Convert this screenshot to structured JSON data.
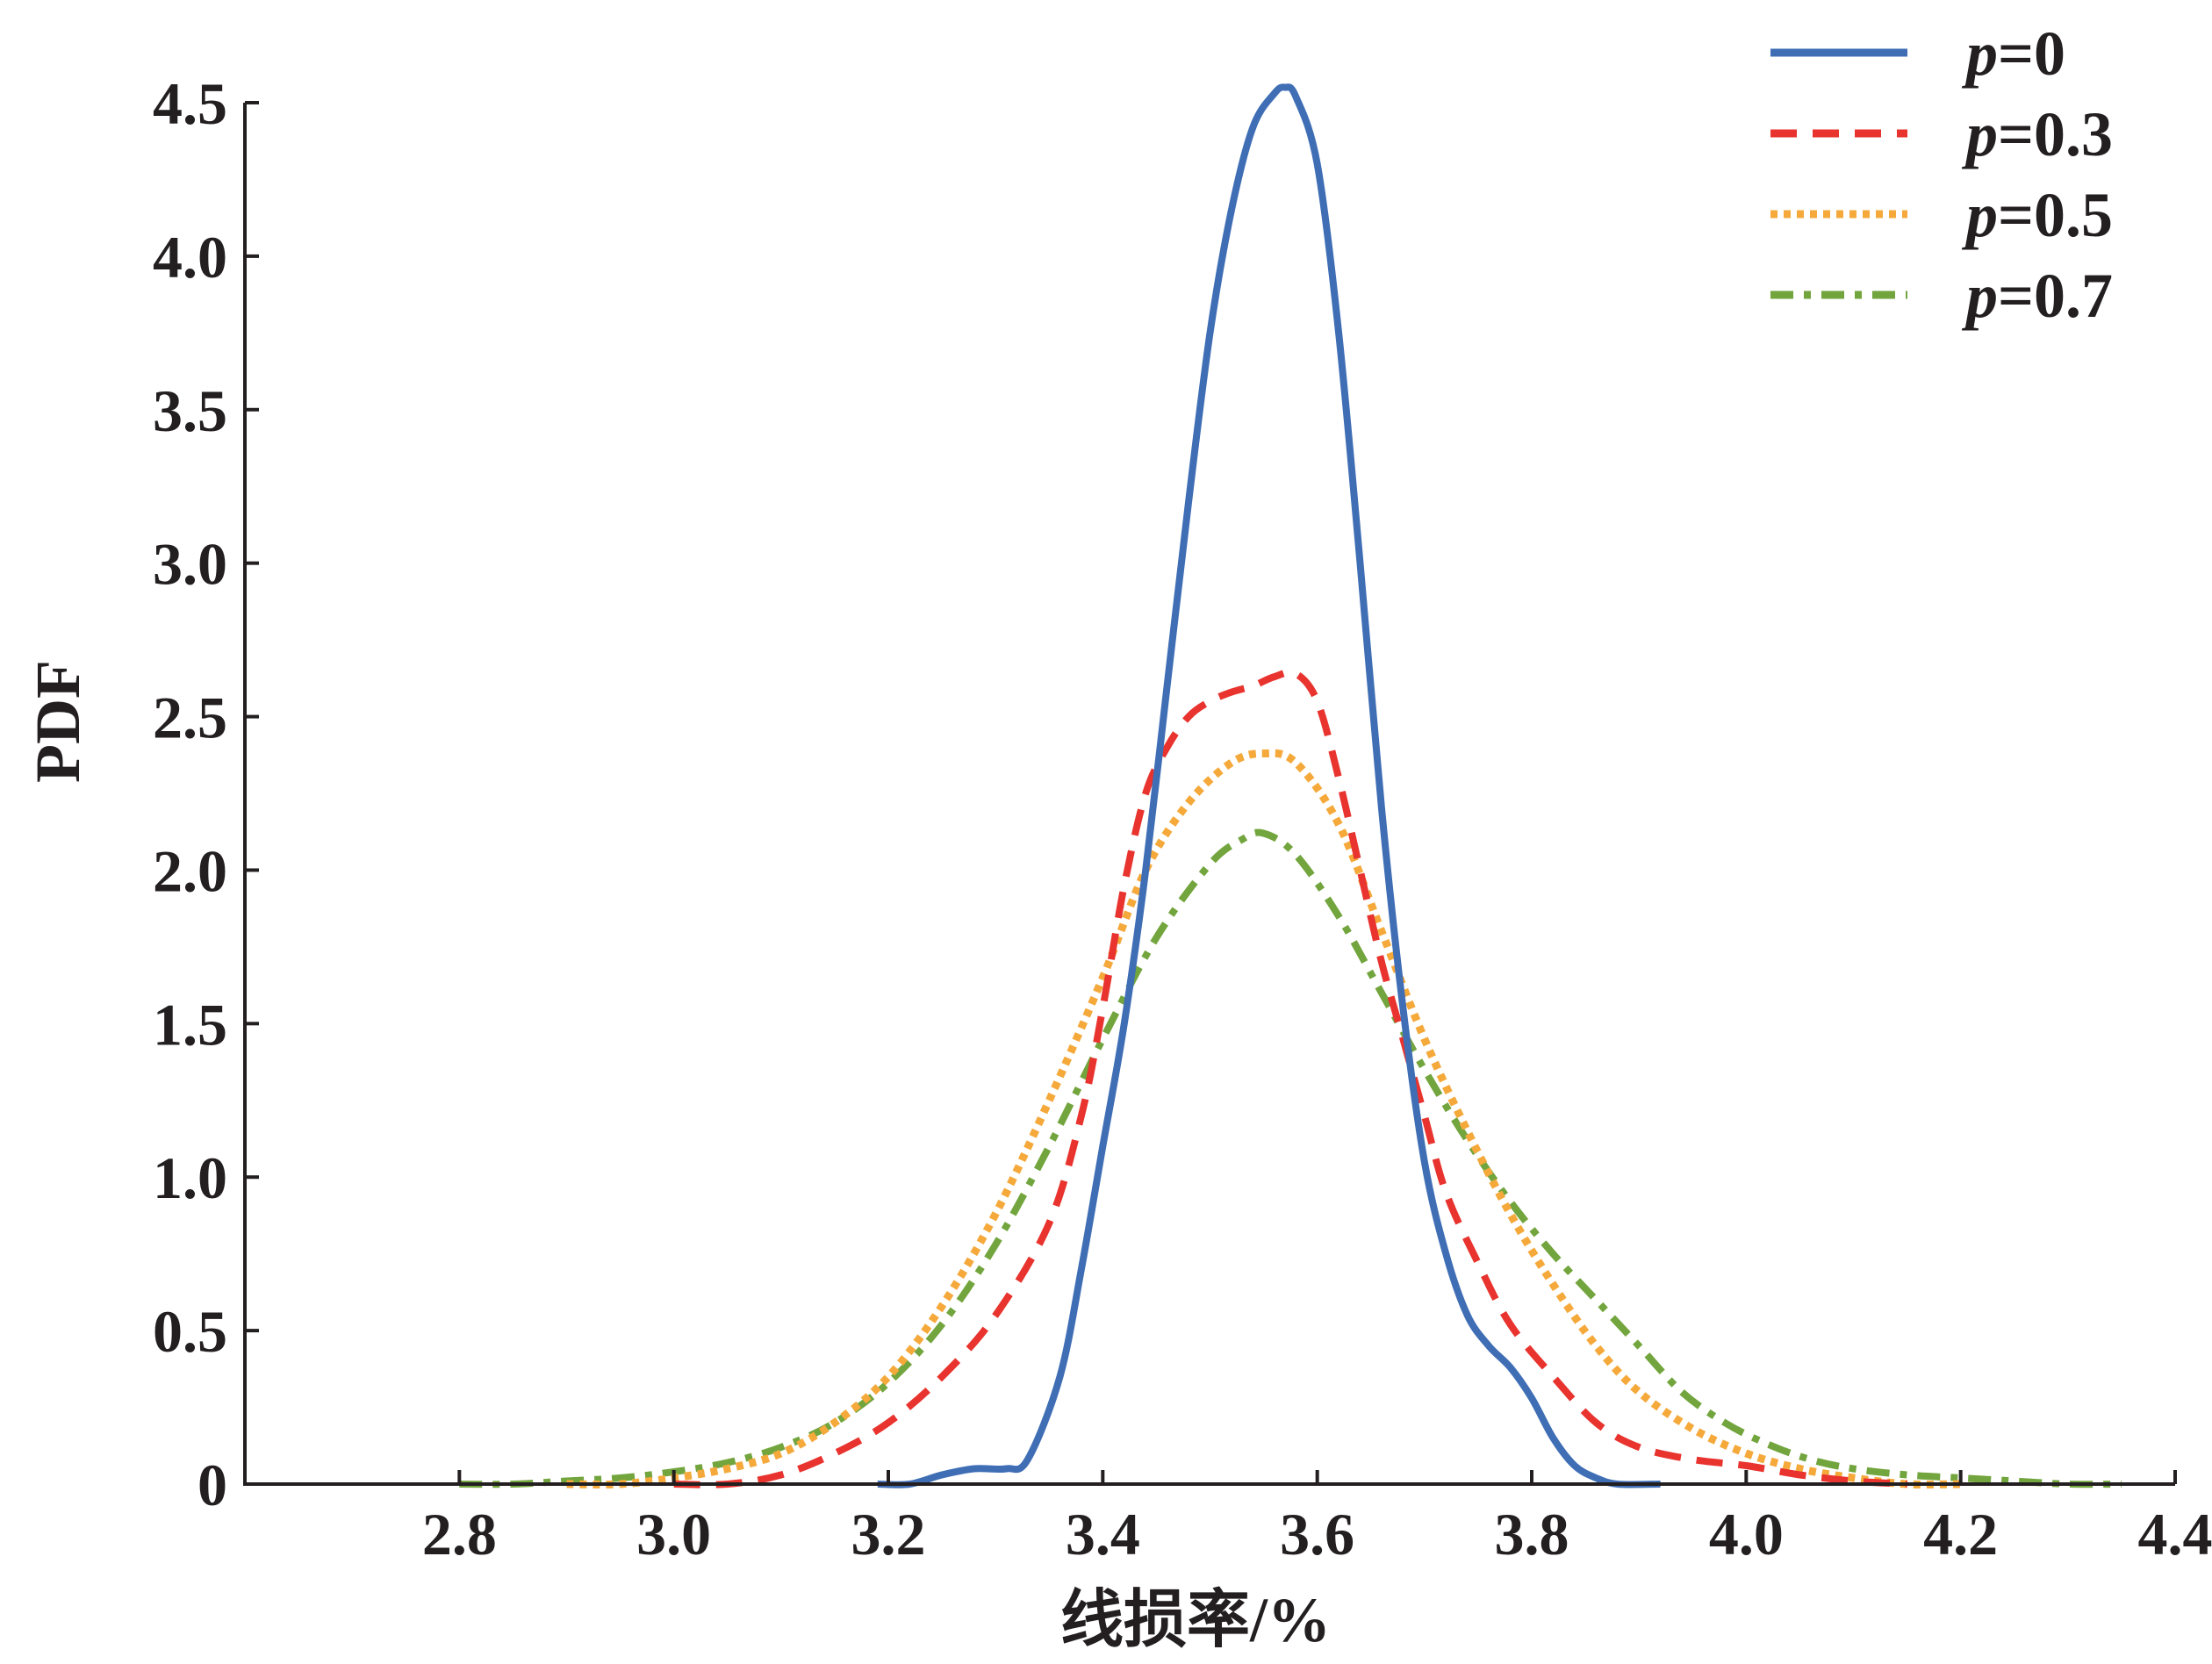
{
  "chart_data": {
    "type": "line",
    "title": "",
    "xlabel": "线损率/%",
    "ylabel": "PDF",
    "xlim": [
      2.6,
      4.4
    ],
    "ylim": [
      0,
      4.5
    ],
    "x_ticks": [
      "2.8",
      "3.0",
      "3.2",
      "3.4",
      "3.6",
      "3.8",
      "4.0",
      "4.2",
      "4.4"
    ],
    "y_ticks": [
      "0",
      "0.5",
      "1.0",
      "1.5",
      "2.0",
      "2.5",
      "3.0",
      "3.5",
      "4.0",
      "4.5"
    ],
    "grid": false,
    "legend_position": "top-right",
    "series": [
      {
        "name_prefix": "p",
        "name_suffix": "=0",
        "color": "#3f6eb5",
        "style": "solid",
        "points": [
          [
            3.19,
            0
          ],
          [
            3.22,
            0.0
          ],
          [
            3.25,
            0.03
          ],
          [
            3.28,
            0.05
          ],
          [
            3.31,
            0.05
          ],
          [
            3.33,
            0.08
          ],
          [
            3.36,
            0.35
          ],
          [
            3.38,
            0.7
          ],
          [
            3.4,
            1.1
          ],
          [
            3.42,
            1.5
          ],
          [
            3.44,
            2.0
          ],
          [
            3.46,
            2.6
          ],
          [
            3.48,
            3.2
          ],
          [
            3.5,
            3.75
          ],
          [
            3.52,
            4.15
          ],
          [
            3.54,
            4.42
          ],
          [
            3.56,
            4.53
          ],
          [
            3.57,
            4.55
          ],
          [
            3.58,
            4.52
          ],
          [
            3.6,
            4.3
          ],
          [
            3.62,
            3.75
          ],
          [
            3.64,
            3.0
          ],
          [
            3.66,
            2.2
          ],
          [
            3.68,
            1.55
          ],
          [
            3.7,
            1.05
          ],
          [
            3.72,
            0.75
          ],
          [
            3.74,
            0.55
          ],
          [
            3.76,
            0.45
          ],
          [
            3.78,
            0.38
          ],
          [
            3.8,
            0.28
          ],
          [
            3.82,
            0.15
          ],
          [
            3.84,
            0.06
          ],
          [
            3.86,
            0.02
          ],
          [
            3.88,
            0.0
          ],
          [
            3.92,
            0
          ]
        ]
      },
      {
        "name_prefix": "p",
        "name_suffix": "=0.3",
        "color": "#e8332e",
        "style": "dashed",
        "points": [
          [
            3.0,
            0
          ],
          [
            3.05,
            0.0
          ],
          [
            3.1,
            0.03
          ],
          [
            3.15,
            0.1
          ],
          [
            3.2,
            0.2
          ],
          [
            3.25,
            0.35
          ],
          [
            3.3,
            0.55
          ],
          [
            3.35,
            0.85
          ],
          [
            3.38,
            1.2
          ],
          [
            3.4,
            1.55
          ],
          [
            3.42,
            1.95
          ],
          [
            3.44,
            2.25
          ],
          [
            3.46,
            2.4
          ],
          [
            3.48,
            2.5
          ],
          [
            3.5,
            2.55
          ],
          [
            3.52,
            2.58
          ],
          [
            3.54,
            2.6
          ],
          [
            3.56,
            2.63
          ],
          [
            3.58,
            2.64
          ],
          [
            3.6,
            2.55
          ],
          [
            3.62,
            2.3
          ],
          [
            3.64,
            2.0
          ],
          [
            3.66,
            1.7
          ],
          [
            3.68,
            1.45
          ],
          [
            3.7,
            1.2
          ],
          [
            3.72,
            0.95
          ],
          [
            3.75,
            0.72
          ],
          [
            3.78,
            0.52
          ],
          [
            3.82,
            0.35
          ],
          [
            3.86,
            0.2
          ],
          [
            3.9,
            0.12
          ],
          [
            3.95,
            0.08
          ],
          [
            4.0,
            0.06
          ],
          [
            4.05,
            0.03
          ],
          [
            4.1,
            0.01
          ],
          [
            4.15,
            0
          ]
        ]
      },
      {
        "name_prefix": "p",
        "name_suffix": "=0.5",
        "color": "#f5a93b",
        "style": "dotted",
        "points": [
          [
            2.9,
            0
          ],
          [
            2.95,
            0.0
          ],
          [
            3.0,
            0.02
          ],
          [
            3.05,
            0.05
          ],
          [
            3.1,
            0.1
          ],
          [
            3.15,
            0.2
          ],
          [
            3.2,
            0.35
          ],
          [
            3.25,
            0.58
          ],
          [
            3.3,
            0.88
          ],
          [
            3.35,
            1.25
          ],
          [
            3.4,
            1.65
          ],
          [
            3.44,
            2.0
          ],
          [
            3.48,
            2.22
          ],
          [
            3.52,
            2.35
          ],
          [
            3.55,
            2.38
          ],
          [
            3.58,
            2.35
          ],
          [
            3.62,
            2.15
          ],
          [
            3.66,
            1.8
          ],
          [
            3.7,
            1.45
          ],
          [
            3.74,
            1.15
          ],
          [
            3.78,
            0.88
          ],
          [
            3.82,
            0.65
          ],
          [
            3.86,
            0.45
          ],
          [
            3.9,
            0.3
          ],
          [
            3.95,
            0.18
          ],
          [
            4.0,
            0.1
          ],
          [
            4.05,
            0.05
          ],
          [
            4.1,
            0.02
          ],
          [
            4.15,
            0.0
          ],
          [
            4.2,
            0
          ]
        ]
      },
      {
        "name_prefix": "p",
        "name_suffix": "=0.7",
        "color": "#72a53d",
        "style": "dashdot",
        "points": [
          [
            2.8,
            0
          ],
          [
            2.85,
            0.0
          ],
          [
            2.9,
            0.01
          ],
          [
            2.95,
            0.02
          ],
          [
            3.0,
            0.04
          ],
          [
            3.05,
            0.07
          ],
          [
            3.1,
            0.12
          ],
          [
            3.15,
            0.2
          ],
          [
            3.2,
            0.33
          ],
          [
            3.25,
            0.52
          ],
          [
            3.3,
            0.78
          ],
          [
            3.35,
            1.1
          ],
          [
            3.4,
            1.45
          ],
          [
            3.45,
            1.78
          ],
          [
            3.5,
            2.02
          ],
          [
            3.53,
            2.1
          ],
          [
            3.55,
            2.12
          ],
          [
            3.58,
            2.05
          ],
          [
            3.62,
            1.85
          ],
          [
            3.66,
            1.6
          ],
          [
            3.7,
            1.35
          ],
          [
            3.74,
            1.12
          ],
          [
            3.78,
            0.92
          ],
          [
            3.82,
            0.75
          ],
          [
            3.86,
            0.6
          ],
          [
            3.9,
            0.45
          ],
          [
            3.94,
            0.3
          ],
          [
            3.98,
            0.2
          ],
          [
            4.02,
            0.13
          ],
          [
            4.06,
            0.08
          ],
          [
            4.1,
            0.05
          ],
          [
            4.15,
            0.03
          ],
          [
            4.2,
            0.02
          ],
          [
            4.25,
            0.01
          ],
          [
            4.3,
            0.0
          ],
          [
            4.35,
            0
          ]
        ]
      }
    ]
  }
}
